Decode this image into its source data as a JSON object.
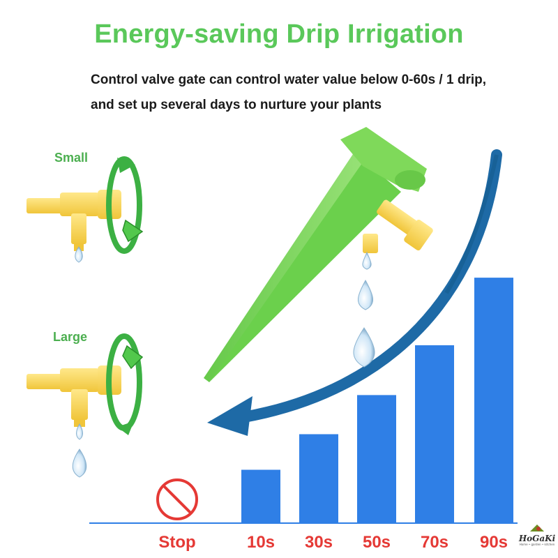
{
  "title": "Energy-saving Drip Irrigation",
  "description": {
    "line1": "Control valve gate can control water value below 0-60s / 1 drip,",
    "line2": "and set up several days to nurture your plants"
  },
  "valves": {
    "small_label": "Small",
    "large_label": "Large"
  },
  "chart_data": {
    "type": "bar",
    "categories": [
      "Stop",
      "10s",
      "30s",
      "50s",
      "70s",
      "90s"
    ],
    "values": [
      0,
      1.5,
      2.5,
      3.6,
      5.0,
      6.9
    ],
    "stop_icon": "prohibited-icon",
    "title": "",
    "xlabel": "",
    "ylabel": "",
    "bar_color": "#2f7fe6",
    "label_color": "#e53935",
    "arrow_color": "#1e6aa6"
  },
  "logo": {
    "name": "HoGaKi",
    "tagline": "Home • garden • kitchen"
  },
  "colors": {
    "title": "#5ac85a",
    "spike": "#7ed957",
    "valve": "#f7d54a",
    "rotate_arrow": "#3cb043"
  }
}
